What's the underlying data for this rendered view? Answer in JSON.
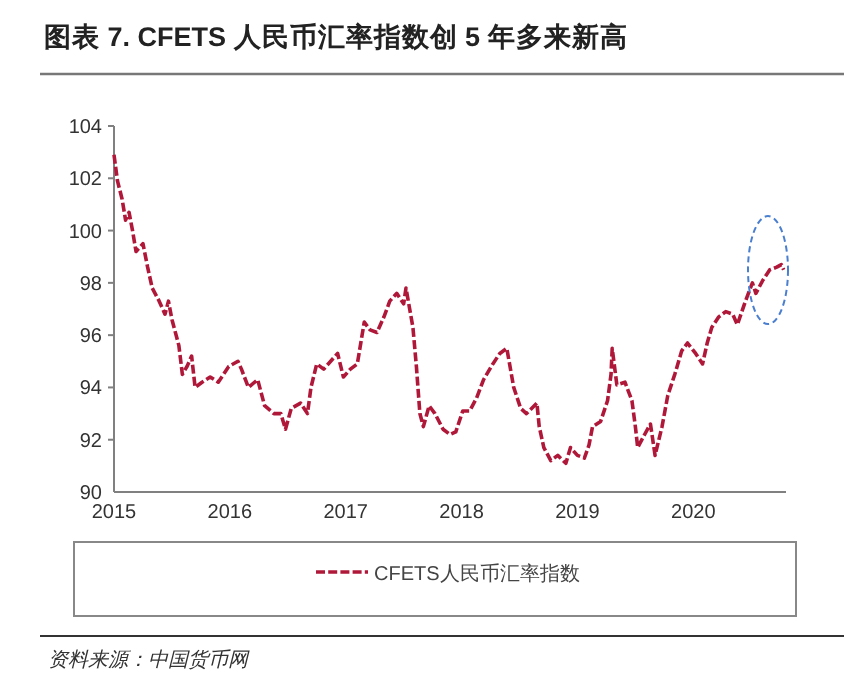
{
  "chart_data": {
    "type": "line",
    "title": "图表 7. CFETS 人民币汇率指数创 5 年多来新高",
    "xlim": [
      2015,
      2020.8
    ],
    "xticks": [
      2015,
      2016,
      2017,
      2018,
      2019,
      2020
    ],
    "ylim": [
      90,
      104
    ],
    "yticks": [
      90,
      92,
      94,
      96,
      98,
      100,
      102,
      104
    ],
    "grid": false,
    "legend": "bottom",
    "line_style": "dashed",
    "marker": "none",
    "annotations": [
      "资料来源：中国货币网"
    ],
    "series": [
      {
        "name": "CFETS人民币汇率指数",
        "color": "#b0183a",
        "x": [
          2015.0,
          2015.03,
          2015.07,
          2015.1,
          2015.13,
          2015.16,
          2015.19,
          2015.25,
          2015.29,
          2015.33,
          2015.39,
          2015.44,
          2015.47,
          2015.5,
          2015.56,
          2015.59,
          2015.63,
          2015.67,
          2015.7,
          2015.76,
          2015.83,
          2015.9,
          2015.99,
          2016.07,
          2016.1,
          2016.16,
          2016.24,
          2016.3,
          2016.38,
          2016.44,
          2016.48,
          2016.53,
          2016.61,
          2016.67,
          2016.7,
          2016.75,
          2016.81,
          2016.87,
          2016.93,
          2016.98,
          2017.04,
          2017.1,
          2017.16,
          2017.21,
          2017.27,
          2017.33,
          2017.38,
          2017.44,
          2017.5,
          2017.52,
          2017.58,
          2017.61,
          2017.64,
          2017.67,
          2017.72,
          2017.77,
          2017.84,
          2017.9,
          2017.95,
          2018.01,
          2018.07,
          2018.13,
          2018.19,
          2018.27,
          2018.33,
          2018.39,
          2018.45,
          2018.51,
          2018.56,
          2018.65,
          2018.67,
          2018.71,
          2018.77,
          2018.83,
          2018.9,
          2018.94,
          2019.0,
          2019.06,
          2019.1,
          2019.13,
          2019.2,
          2019.26,
          2019.29,
          2019.3,
          2019.34,
          2019.41,
          2019.47,
          2019.5,
          2019.52,
          2019.58,
          2019.63,
          2019.67,
          2019.73,
          2019.78,
          2019.84,
          2019.9,
          2019.95,
          2020.02,
          2020.08,
          2020.12,
          2020.16,
          2020.22,
          2020.28,
          2020.34,
          2020.38,
          2020.45,
          2020.51,
          2020.54,
          2020.6,
          2020.66,
          2020.72,
          2020.76,
          2020.78
        ],
        "values": [
          102.9,
          101.9,
          101.2,
          100.4,
          100.7,
          100.0,
          99.2,
          99.5,
          98.6,
          97.8,
          97.3,
          96.8,
          97.3,
          96.6,
          95.6,
          94.5,
          94.8,
          95.2,
          94.0,
          94.2,
          94.4,
          94.2,
          94.8,
          95.0,
          94.7,
          94.0,
          94.3,
          93.3,
          93.0,
          93.0,
          92.4,
          93.2,
          93.4,
          93.0,
          94.0,
          94.9,
          94.7,
          95.0,
          95.3,
          94.4,
          94.7,
          94.9,
          96.5,
          96.2,
          96.1,
          96.7,
          97.3,
          97.6,
          97.2,
          97.8,
          96.3,
          94.8,
          93.0,
          92.5,
          93.3,
          93.0,
          92.4,
          92.2,
          92.3,
          93.1,
          93.1,
          93.6,
          94.3,
          94.9,
          95.3,
          95.5,
          94.0,
          93.2,
          93.0,
          93.4,
          92.5,
          91.7,
          91.2,
          91.4,
          91.1,
          91.7,
          91.4,
          91.3,
          91.8,
          92.5,
          92.7,
          93.5,
          94.5,
          95.5,
          94.1,
          94.2,
          93.5,
          92.5,
          91.7,
          92.2,
          92.6,
          91.4,
          92.5,
          93.7,
          94.5,
          95.4,
          95.7,
          95.3,
          94.9,
          95.7,
          96.3,
          96.7,
          96.9,
          96.8,
          96.4,
          97.3,
          98.0,
          97.6,
          98.1,
          98.5,
          98.6,
          98.7,
          98.5
        ]
      }
    ]
  }
}
